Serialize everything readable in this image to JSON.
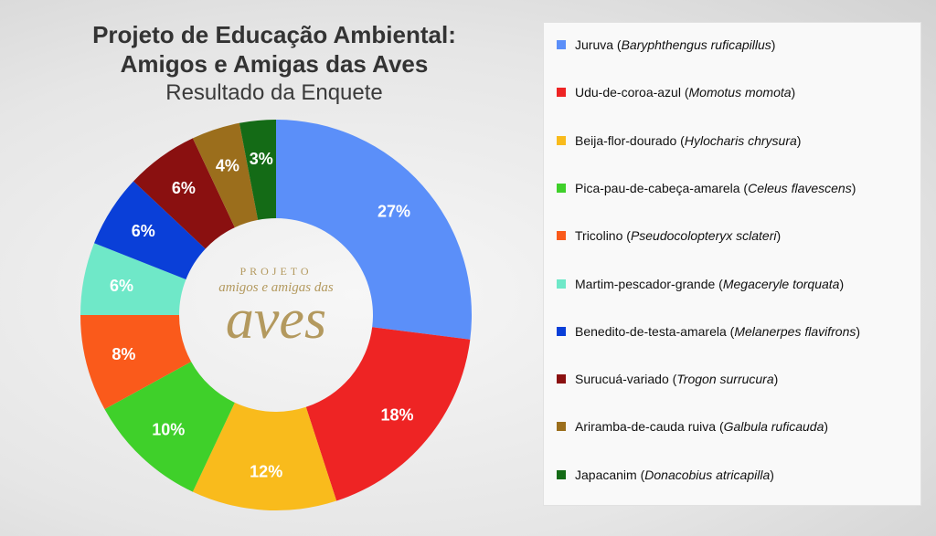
{
  "chart_data": {
    "type": "pie",
    "title_lines": [
      "Projeto de Educação Ambiental:",
      "Amigos  e Amigas das Aves"
    ],
    "subtitle": "Resultado da Enquete",
    "slices": [
      {
        "common": "Juruva",
        "scientific": "Baryphthengus ruficapillus",
        "value": 27,
        "label": "27%",
        "color": "#5b8ff9"
      },
      {
        "common": "Udu-de-coroa-azul",
        "scientific": "Momotus momota",
        "value": 18,
        "label": "18%",
        "color": "#ee2424"
      },
      {
        "common": "Beija-flor-dourado",
        "scientific": "Hylocharis chrysura",
        "value": 12,
        "label": "12%",
        "color": "#f9bb1c"
      },
      {
        "common": "Pica-pau-de-cabeça-amarela",
        "scientific": "Celeus flavescens",
        "value": 10,
        "label": "10%",
        "color": "#3fd02a"
      },
      {
        "common": "Tricolino",
        "scientific": "Pseudocolopteryx sclateri",
        "value": 8,
        "label": "8%",
        "color": "#fa5a1b"
      },
      {
        "common": "Martim-pescador-grande",
        "scientific": "Megaceryle torquata",
        "value": 6,
        "label": "6%",
        "color": "#6fe8c8"
      },
      {
        "common": "Benedito-de-testa-amarela",
        "scientific": "Melanerpes flavifrons",
        "value": 6,
        "label": "6%",
        "color": "#0a3fd8"
      },
      {
        "common": "Surucuá-variado",
        "scientific": "Trogon surrucura",
        "value": 6,
        "label": "6%",
        "color": "#8a1010"
      },
      {
        "common": "Ariramba-de-cauda ruiva",
        "scientific": "Galbula ruficauda",
        "value": 4,
        "label": "4%",
        "color": "#9b6e1c"
      },
      {
        "common": "Japacanim",
        "scientific": "Donacobius atricapilla",
        "value": 3,
        "label": "3%",
        "color": "#146b16"
      }
    ],
    "legend_position": "right"
  },
  "logo": {
    "top": "PROJETO",
    "middle": "amigos e amigas das",
    "big": "aves"
  }
}
